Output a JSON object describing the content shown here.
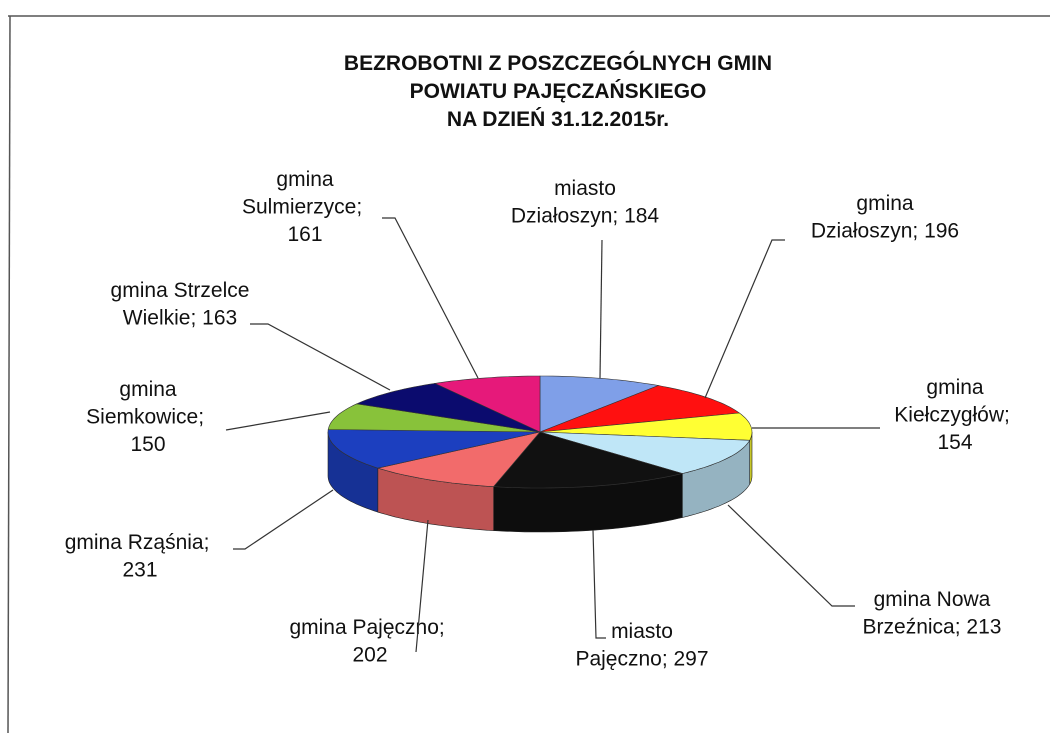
{
  "chart_data": {
    "type": "pie3d",
    "title": [
      "BEZROBOTNI Z POSZCZEGÓLNYCH GMIN",
      "POWIATU PAJĘCZAŃSKIEGO",
      "NA DZIEŃ 31.12.2015r."
    ],
    "categories": [
      "miasto Działoszyn",
      "gmina Działoszyn",
      "gmina Kiełczygłów",
      "gmina Nowa Brzeźnica",
      "miasto Pajęczno",
      "gmina Pajęczno",
      "gmina Rząśnia",
      "gmina Siemkowice",
      "gmina Strzelce Wielkie",
      "gmina Sulmierzyce"
    ],
    "values": [
      184,
      196,
      154,
      213,
      297,
      202,
      231,
      150,
      163,
      161
    ],
    "colors": [
      "#7f9fe8",
      "#ff1010",
      "#ffff33",
      "#bfe6f7",
      "#111111",
      "#f26b6b",
      "#1c3fbf",
      "#88c23a",
      "#0b0b6e",
      "#e6197a"
    ],
    "label_separator": "; "
  }
}
